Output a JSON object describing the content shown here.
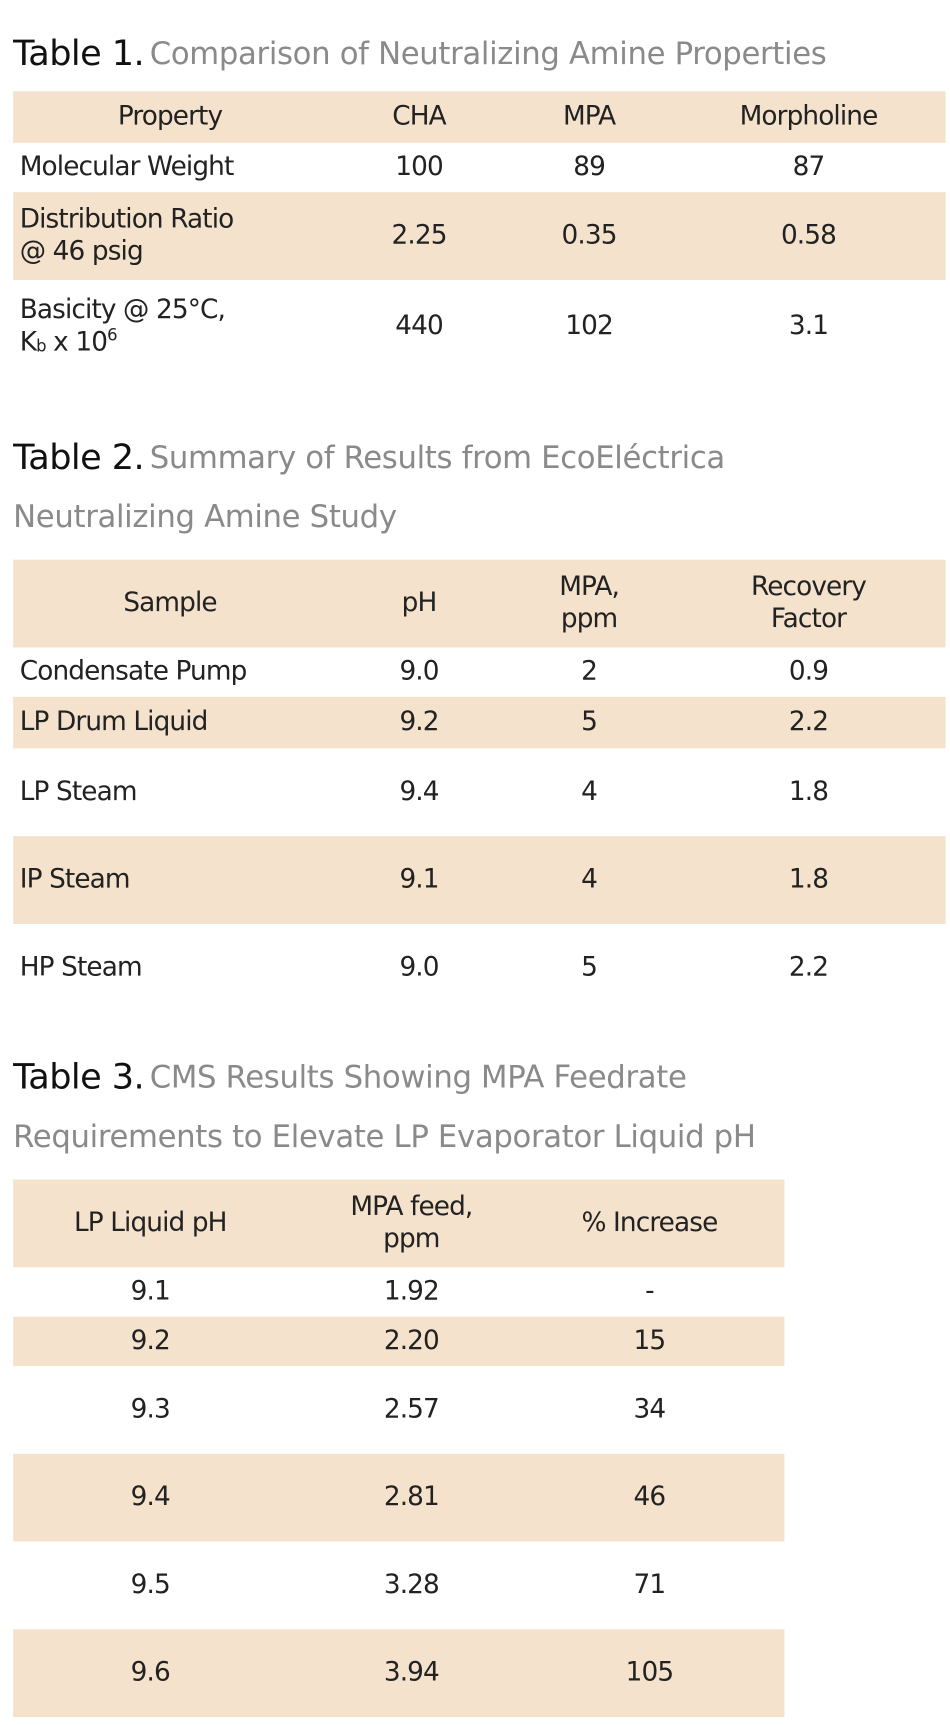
{
  "tables": [
    {
      "label": "Table 1.",
      "caption": [
        "Comparison of Neutralizing Amine Properties"
      ],
      "header": [
        [
          "Property"
        ],
        [
          "CHA"
        ],
        [
          "MPA"
        ],
        [
          "Morpholine"
        ]
      ],
      "rows": [
        [
          [
            "Molecular Weight"
          ],
          [
            "100"
          ],
          [
            "89"
          ],
          [
            "87"
          ]
        ],
        [
          [
            "Distribution Ratio",
            "@ 46 psig"
          ],
          [
            "2.25"
          ],
          [
            "0.35"
          ],
          [
            "0.58"
          ]
        ],
        [
          [
            "Basicity @ 25°C,",
            [
              {
                "t": "K"
              },
              {
                "sub": "b"
              },
              {
                "t": " x 10"
              },
              {
                "sup": "6"
              }
            ]
          ],
          [
            "440"
          ],
          [
            "102"
          ],
          [
            "3.1"
          ]
        ]
      ]
    },
    {
      "label": "Table 2.",
      "caption": [
        "Summary of Results from EcoEléctrica",
        "Neutralizing Amine Study"
      ],
      "header": [
        [
          "Sample"
        ],
        [
          "pH"
        ],
        [
          "MPA,",
          "ppm"
        ],
        [
          "Recovery",
          "Factor"
        ]
      ],
      "rows": [
        [
          [
            "Condensate Pump"
          ],
          [
            "9.0"
          ],
          [
            "2"
          ],
          [
            "0.9"
          ]
        ],
        [
          [
            "LP Drum Liquid"
          ],
          [
            "9.2"
          ],
          [
            "5"
          ],
          [
            "2.2"
          ]
        ],
        [
          [
            "LP Steam"
          ],
          [
            "9.4"
          ],
          [
            "4"
          ],
          [
            "1.8"
          ]
        ],
        [
          [
            "IP Steam"
          ],
          [
            "9.1"
          ],
          [
            "4"
          ],
          [
            "1.8"
          ]
        ],
        [
          [
            "HP Steam"
          ],
          [
            "9.0"
          ],
          [
            "5"
          ],
          [
            "2.2"
          ]
        ]
      ]
    },
    {
      "label": "Table 3.",
      "caption": [
        "CMS Results Showing MPA Feedrate",
        "Requirements to Elevate LP Evaporator Liquid pH"
      ],
      "header": [
        [
          "LP Liquid pH"
        ],
        [
          "MPA feed,",
          "ppm"
        ],
        [
          "% Increase"
        ]
      ],
      "rows": [
        [
          [
            "9.1"
          ],
          [
            "1.92"
          ],
          [
            "-"
          ]
        ],
        [
          [
            "9.2"
          ],
          [
            "2.20"
          ],
          [
            "15"
          ]
        ],
        [
          [
            "9.3"
          ],
          [
            "2.57"
          ],
          [
            "34"
          ]
        ],
        [
          [
            "9.4"
          ],
          [
            "2.81"
          ],
          [
            "46"
          ]
        ],
        [
          [
            "9.5"
          ],
          [
            "3.28"
          ],
          [
            "71"
          ]
        ],
        [
          [
            "9.6"
          ],
          [
            "3.94"
          ],
          [
            "105"
          ]
        ]
      ]
    }
  ]
}
